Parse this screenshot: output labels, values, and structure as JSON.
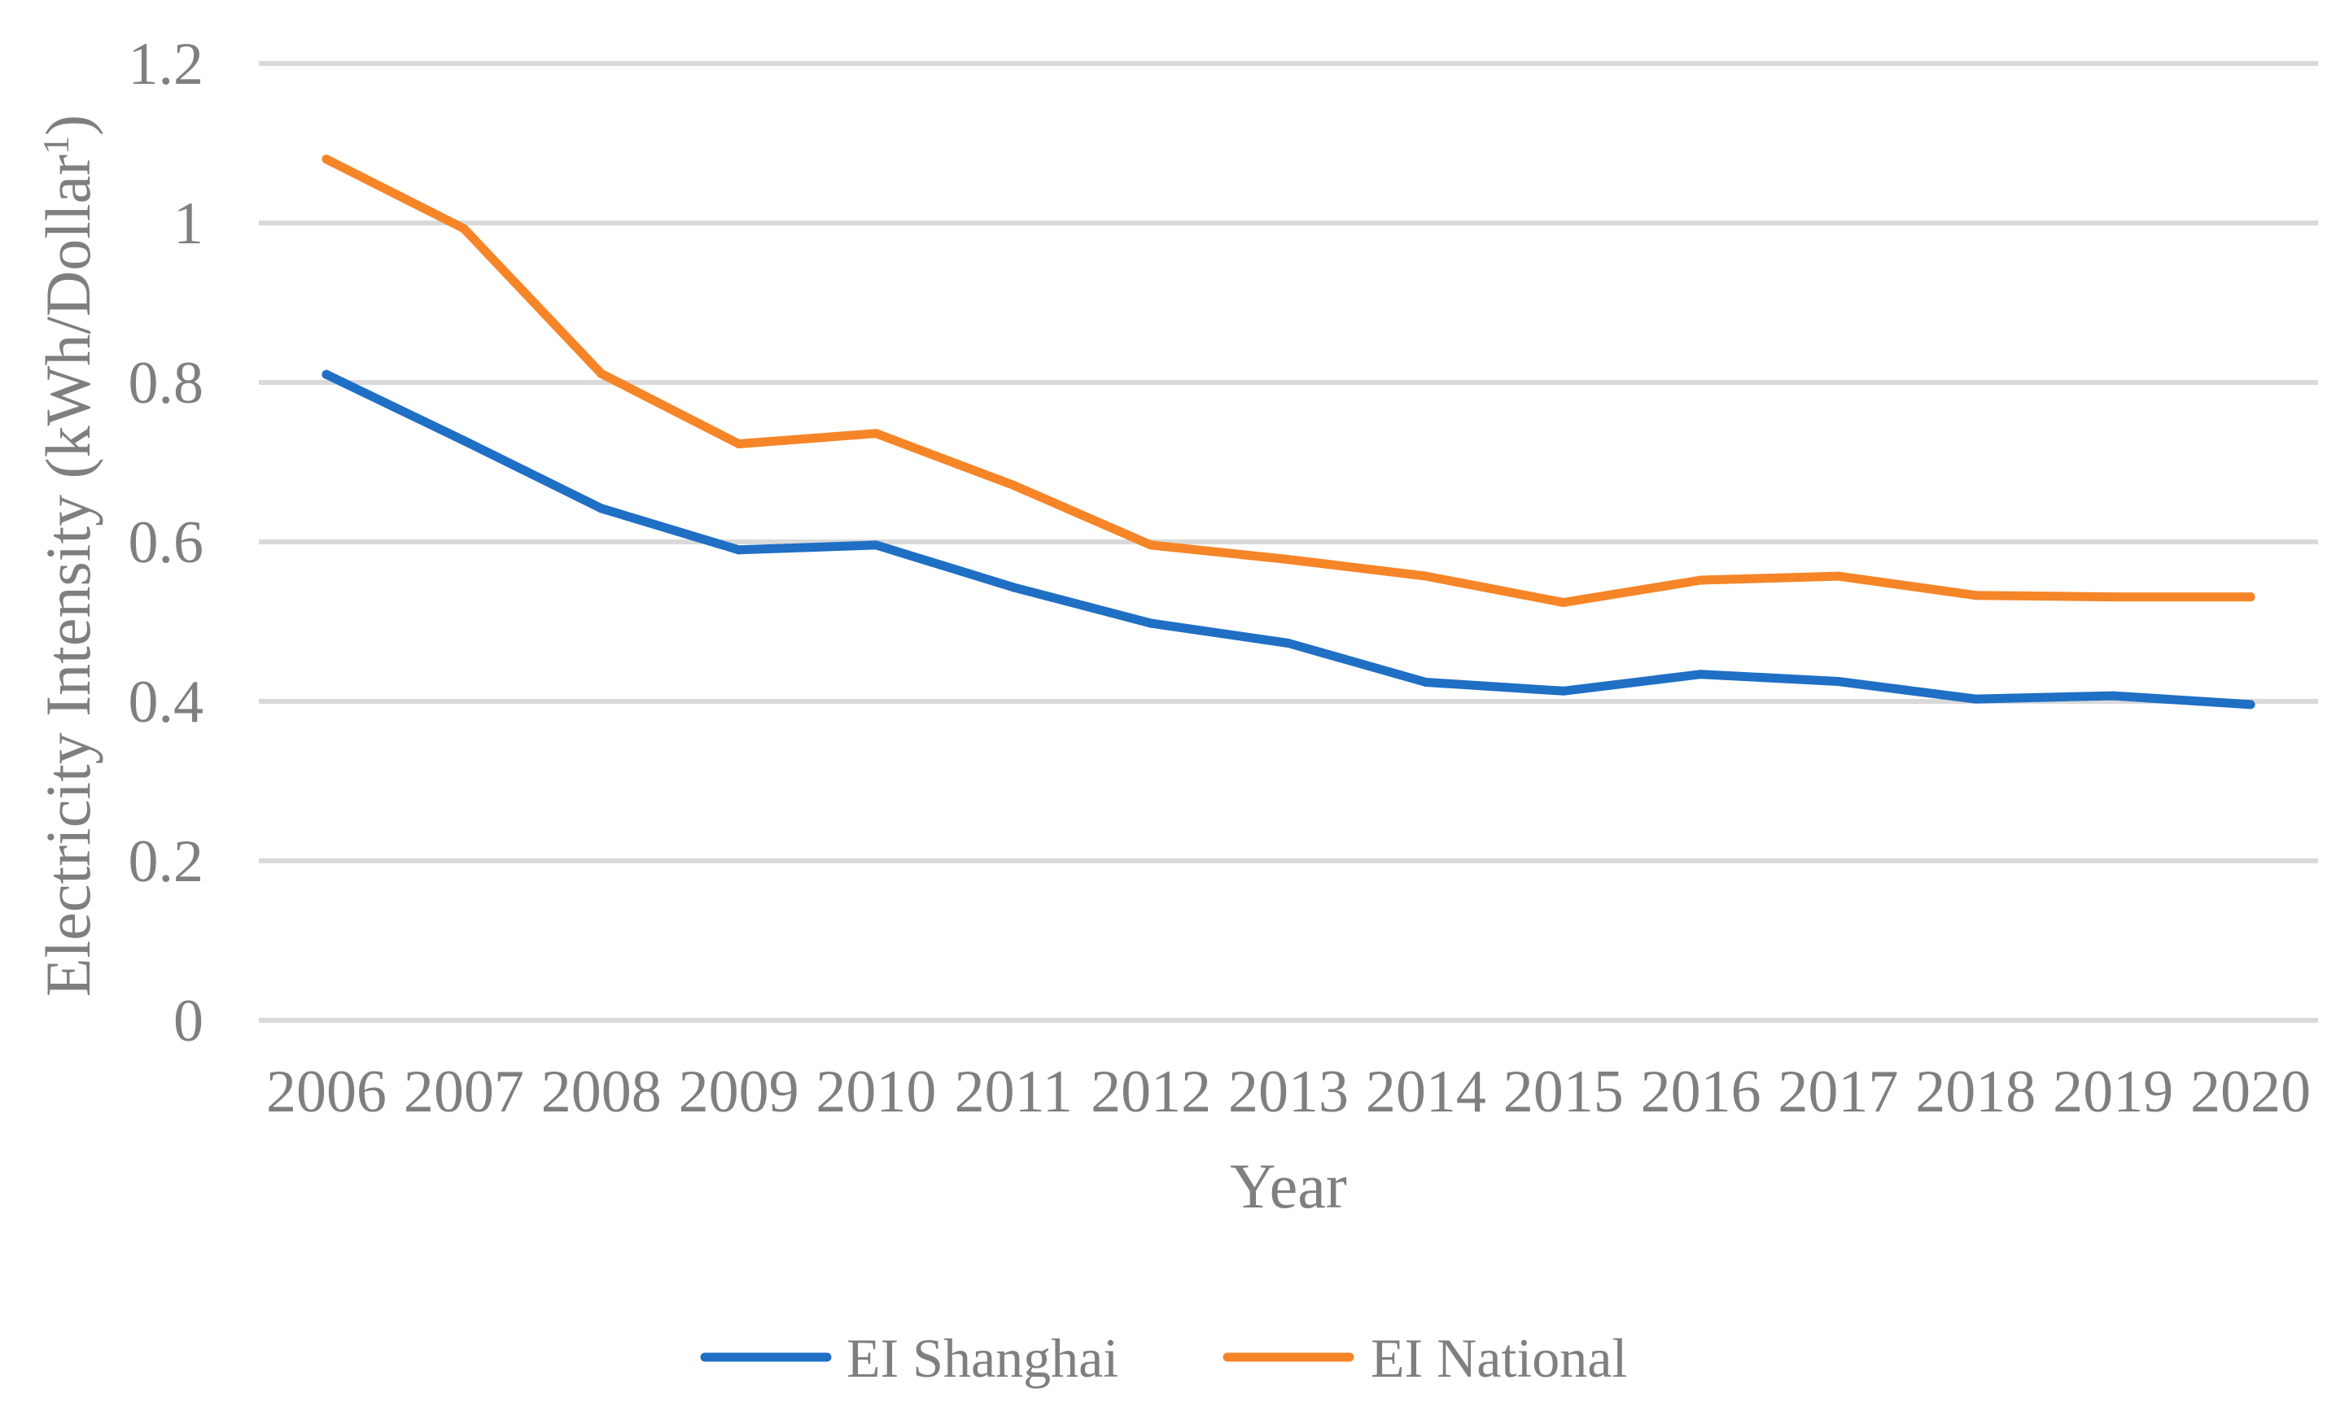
{
  "chart_data": {
    "type": "line",
    "title": "",
    "xlabel": "Year",
    "ylabel": "Electricity Intensity (kWh/Dollar",
    "ylabel_superscript": "1",
    "ylabel_close": ")",
    "ylim": [
      0,
      1.2
    ],
    "yticks": [
      0,
      0.2,
      0.4,
      0.6,
      0.8,
      1,
      1.2
    ],
    "ytick_labels": [
      "0",
      "0.2",
      "0.4",
      "0.6",
      "0.8",
      "1",
      "1.2"
    ],
    "grid": true,
    "legend_position": "bottom",
    "categories": [
      "2006",
      "2007",
      "2008",
      "2009",
      "2010",
      "2011",
      "2012",
      "2013",
      "2014",
      "2015",
      "2016",
      "2017",
      "2018",
      "2019",
      "2020"
    ],
    "series": [
      {
        "name": "EI Shanghai",
        "color": "#1f6fc5",
        "values": [
          0.81,
          0.727,
          0.642,
          0.59,
          0.596,
          0.543,
          0.498,
          0.473,
          0.424,
          0.413,
          0.434,
          0.425,
          0.403,
          0.407,
          0.396
        ]
      },
      {
        "name": "EI National",
        "color": "#f68528",
        "values": [
          1.08,
          0.993,
          0.811,
          0.723,
          0.736,
          0.671,
          0.596,
          0.578,
          0.557,
          0.524,
          0.552,
          0.557,
          0.533,
          0.531,
          0.531
        ]
      }
    ]
  }
}
